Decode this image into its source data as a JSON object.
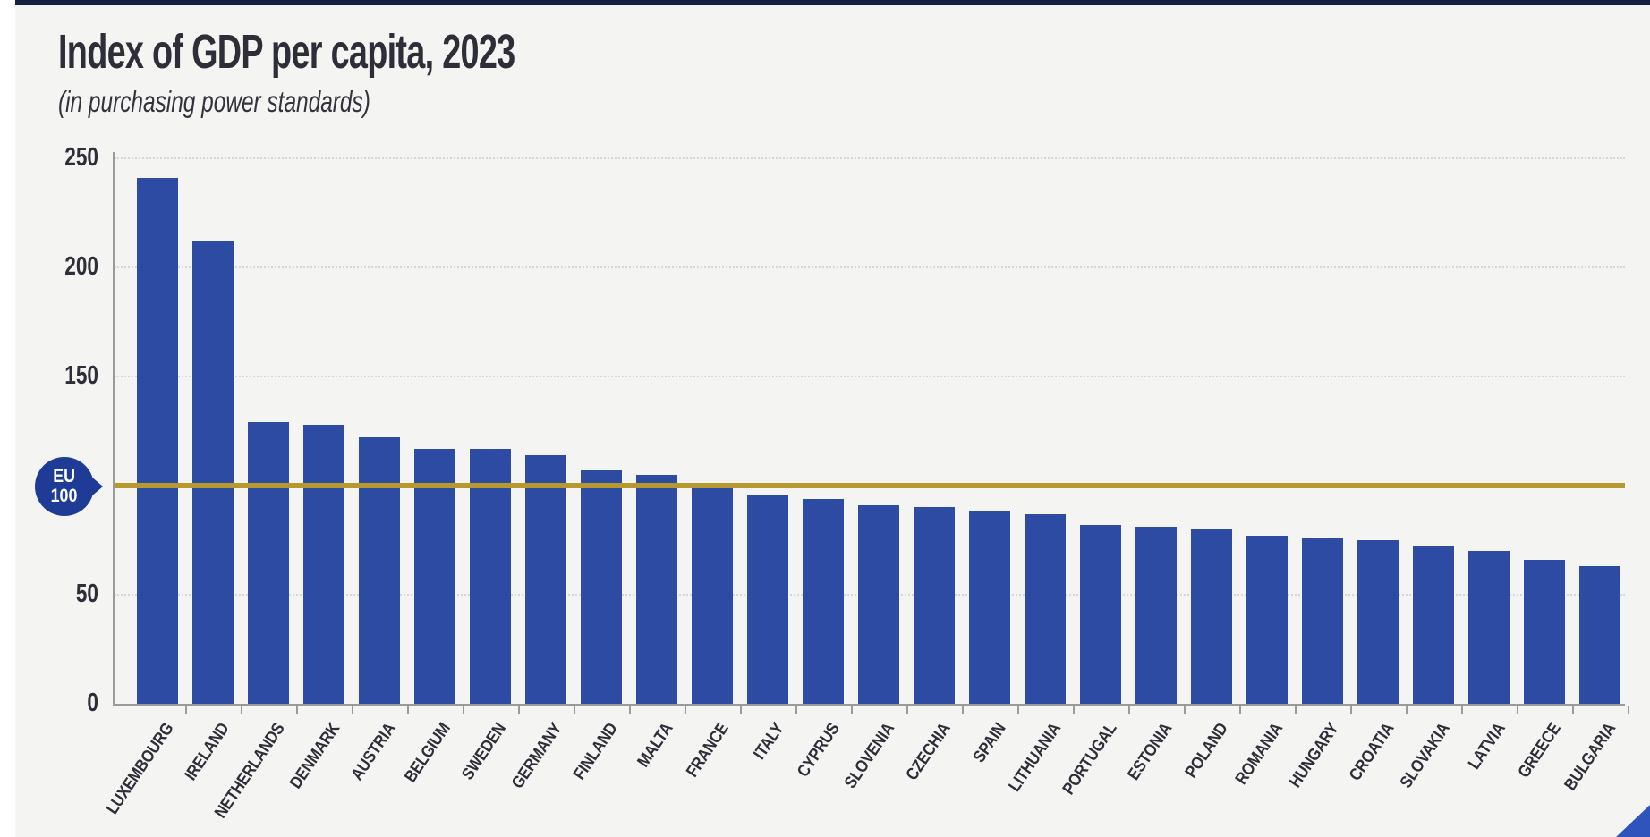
{
  "page": {
    "title": "Index of GDP per capita, 2023",
    "subtitle": "(in purchasing power standards)"
  },
  "badge": {
    "line1": "EU",
    "line2": "100"
  },
  "chart_data": {
    "type": "bar",
    "title": "Index of GDP per capita, 2023",
    "subtitle": "(in purchasing power standards)",
    "categories": [
      "LUXEMBOURG",
      "IRELAND",
      "NETHERLANDS",
      "DENMARK",
      "AUSTRIA",
      "BELGIUM",
      "SWEDEN",
      "GERMANY",
      "FINLAND",
      "MALTA",
      "FRANCE",
      "ITALY",
      "CYPRUS",
      "SLOVENIA",
      "CZECHIA",
      "SPAIN",
      "LITHUANIA",
      "PORTUGAL",
      "ESTONIA",
      "POLAND",
      "ROMANIA",
      "HUNGARY",
      "CROATIA",
      "SLOVAKIA",
      "LATVIA",
      "GREECE",
      "BULGARIA"
    ],
    "values": [
      241,
      212,
      129,
      128,
      122,
      117,
      117,
      114,
      107,
      105,
      99,
      96,
      94,
      91,
      90,
      88,
      87,
      82,
      81,
      80,
      77,
      76,
      75,
      72,
      70,
      66,
      63
    ],
    "xlabel": "",
    "ylabel": "",
    "ylim": [
      0,
      250
    ],
    "y_tick_labels": [
      250,
      200,
      150,
      50,
      0
    ],
    "gridline_values": [
      250,
      200,
      150,
      50
    ],
    "grid": "horizontal dotted",
    "legend": "none",
    "reference_line": {
      "value": 100,
      "label_line1": "EU",
      "label_line2": "100"
    },
    "colors": {
      "bar": "#2e4ba4",
      "reference_line": "#b8992e",
      "badge": "#1e3c96",
      "background": "#f4f4f2",
      "header_strip": "#13203f",
      "corner_triangle": "#2f55bd",
      "axis": "#9a9a9a",
      "gridline": "#d6d6d6",
      "text": "#2e2e38"
    }
  }
}
